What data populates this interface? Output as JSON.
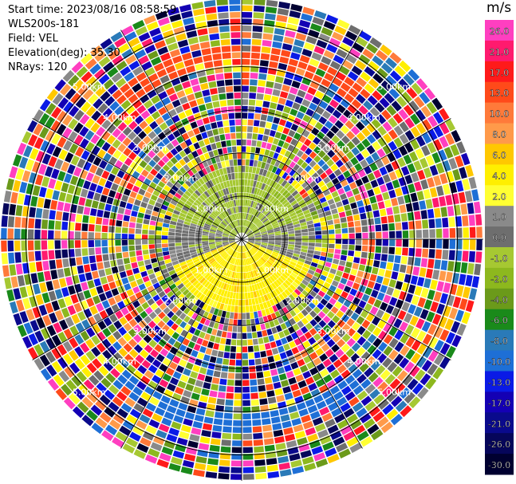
{
  "header": {
    "start_time": "Start time: 2023/08/16 08:58:59",
    "instrument": "WLS200s-181",
    "field": "Field: VEL",
    "elevation": "Elevation(deg): 35.30",
    "nrays": "NRays: 120"
  },
  "colorbar": {
    "unit": "m/s",
    "bins": [
      {
        "label": "26.0",
        "color": "#ff3fc0"
      },
      {
        "label": "21.0",
        "color": "#ff1a6e"
      },
      {
        "label": "17.0",
        "color": "#ff1a1a"
      },
      {
        "label": "13.0",
        "color": "#ff4a1a"
      },
      {
        "label": "10.0",
        "color": "#ff7a3a"
      },
      {
        "label": "8.0",
        "color": "#ff9a4a"
      },
      {
        "label": "6.0",
        "color": "#ffc800"
      },
      {
        "label": "4.0",
        "color": "#ffef00"
      },
      {
        "label": "2.0",
        "color": "#ffff33"
      },
      {
        "label": "1.0",
        "color": "#8a8a8a"
      },
      {
        "label": "0.0",
        "color": "#6e6e6e"
      },
      {
        "label": "-1.0",
        "color": "#a6c832"
      },
      {
        "label": "-2.0",
        "color": "#8db81e"
      },
      {
        "label": "-4.0",
        "color": "#6b9a1a"
      },
      {
        "label": "-6.0",
        "color": "#1a8a1a"
      },
      {
        "label": "-8.0",
        "color": "#2a7ab8"
      },
      {
        "label": "-10.0",
        "color": "#1e6fd6"
      },
      {
        "label": "-13.0",
        "color": "#0a1ae6"
      },
      {
        "label": "-17.0",
        "color": "#1400b4"
      },
      {
        "label": "-21.0",
        "color": "#0a0a8c"
      },
      {
        "label": "-26.0",
        "color": "#06065a"
      },
      {
        "label": "-30.0",
        "color": "#000030"
      }
    ]
  },
  "chart_data": {
    "type": "heatmap",
    "projection": "polar PPI",
    "field": "VEL",
    "nrays": 120,
    "range_rings": [
      "1.00km",
      "2.00km",
      "3.00km",
      "4.00km",
      "5.00km"
    ],
    "range_max_km": 5.6,
    "grid": true,
    "colormap": "velocity",
    "vmin": -30.0,
    "vmax": 26.0
  }
}
